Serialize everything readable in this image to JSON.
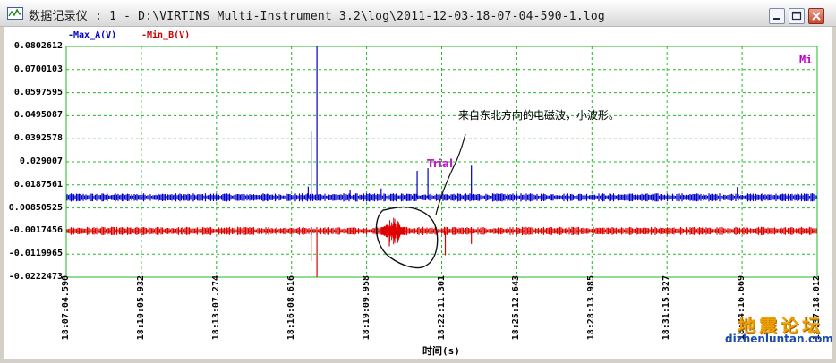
{
  "window": {
    "title": "数据记录仪 : 1 - D:\\VIRTINS Multi-Instrument 3.2\\log\\2011-12-03-18-07-04-590-1.log",
    "buttons": {
      "minimize": "minimize-icon",
      "maximize": "maximize-icon",
      "close": "close-icon"
    }
  },
  "legend": {
    "series_a": "-Max_A(V)",
    "series_b": "-Min_B(V)"
  },
  "corner_label": "Mi",
  "annotations": {
    "note": "来自东北方向的电磁波，小波形。",
    "trial": "Trial"
  },
  "watermark": {
    "site_name": "地震论坛",
    "url": "dizhenluntan.com"
  },
  "colors": {
    "series_a": "#0000c8",
    "series_b": "#e00000",
    "grid": "#22b822",
    "annotation": "#c020c0"
  },
  "chart_data": {
    "type": "line",
    "xlabel": "时间(s)",
    "ylabel": "",
    "y_ticks": [
      "0.0802612",
      "0.0700103",
      "0.0597595",
      "0.0495087",
      "0.0392578",
      "0.029007",
      "0.0187561",
      "0.00850525",
      "-0.0017456",
      "-0.0119965",
      "-0.0222473"
    ],
    "ylim": [
      -0.0222473,
      0.0802612
    ],
    "x_ticks": [
      "18:07:04.590",
      "18:10:05.932",
      "18:13:07.274",
      "18:16:08.616",
      "18:19:09.958",
      "18:22:11.301",
      "18:25:12.643",
      "18:28:13.985",
      "18:31:15.327",
      "18:34:16.669",
      "18:37:18.012"
    ],
    "xlim": [
      "18:07:04.590",
      "18:37:18.012"
    ],
    "grid": true,
    "series": [
      {
        "name": "Max_A(V)",
        "baseline": 0.0132,
        "spikes": [
          {
            "t": "18:17:10",
            "v": 0.0802612
          },
          {
            "t": "18:16:56",
            "v": 0.0425
          },
          {
            "t": "18:16:49",
            "v": 0.018
          },
          {
            "t": "18:21:12",
            "v": 0.025
          },
          {
            "t": "18:21:38",
            "v": 0.0262
          },
          {
            "t": "18:19:45",
            "v": 0.0172
          },
          {
            "t": "18:23:23",
            "v": 0.0273
          },
          {
            "t": "18:34:05",
            "v": 0.0178
          },
          {
            "t": "18:18:30",
            "v": 0.0165
          }
        ]
      },
      {
        "name": "Min_B(V)",
        "baseline": -0.0017456,
        "spikes": [
          {
            "t": "18:17:10",
            "v": -0.0222473
          },
          {
            "t": "18:16:56",
            "v": -0.015
          },
          {
            "t": "18:20:05",
            "v": -0.0085
          },
          {
            "t": "18:20:25",
            "v": -0.007
          },
          {
            "t": "18:22:20",
            "v": -0.0125
          },
          {
            "t": "18:23:23",
            "v": -0.0075
          }
        ]
      }
    ]
  }
}
